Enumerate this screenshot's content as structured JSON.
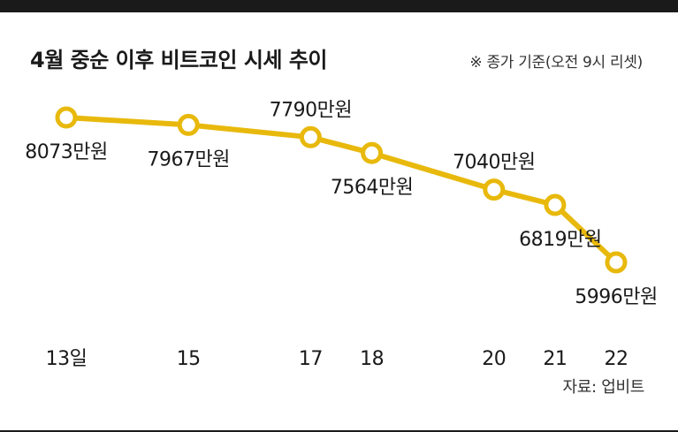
{
  "title": "4월 중순 이후 비트코인 시세 추이",
  "note": "※ 종가 기준(오전 9시 리셋)",
  "source": "자료: 업비트",
  "colors": {
    "line": "#E8B90C",
    "marker_fill": "#ffffff",
    "text": "#1a1a1a",
    "bar": "#1a1a1a"
  },
  "chart_data": {
    "type": "line",
    "title": "4월 중순 이후 비트코인 시세 추이",
    "xlabel": "",
    "ylabel": "",
    "grid": false,
    "x": [
      13,
      15,
      17,
      18,
      20,
      21,
      22
    ],
    "tick_labels": [
      "13일",
      "15",
      "17",
      "18",
      "20",
      "21",
      "22"
    ],
    "values": [
      8073,
      7967,
      7790,
      7564,
      7040,
      6819,
      5996
    ],
    "value_labels": [
      "8073만원",
      "7967만원",
      "7790만원",
      "7564만원",
      "7040만원",
      "6819만원",
      "5996만원"
    ],
    "label_side": [
      "below",
      "below",
      "above",
      "below",
      "above",
      "below",
      "below"
    ],
    "unit": "만원"
  }
}
